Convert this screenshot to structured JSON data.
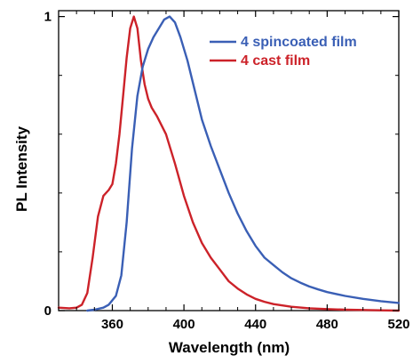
{
  "chart_data": {
    "type": "line",
    "xlabel": "Wavelength (nm)",
    "ylabel": "PL Intensity",
    "xlim": [
      330,
      520
    ],
    "ylim": [
      0,
      1.02
    ],
    "x_ticks": [
      "360",
      "400",
      "440",
      "480",
      "520"
    ],
    "y_ticks": [
      "0",
      "1"
    ],
    "grid": false,
    "legend_position": "top-right",
    "series": [
      {
        "name": "4 spincoated film",
        "color": "#3a5fb5",
        "x": [
          346,
          350,
          355,
          358,
          362,
          365,
          368,
          371,
          374,
          377,
          380,
          383,
          386,
          389,
          392,
          395,
          398,
          402,
          406,
          410,
          415,
          420,
          425,
          430,
          435,
          440,
          445,
          450,
          455,
          460,
          465,
          470,
          475,
          480,
          490,
          500,
          510,
          520
        ],
        "y": [
          0.0,
          0.003,
          0.01,
          0.02,
          0.05,
          0.12,
          0.3,
          0.55,
          0.73,
          0.83,
          0.89,
          0.93,
          0.96,
          0.99,
          1.0,
          0.98,
          0.93,
          0.85,
          0.75,
          0.65,
          0.56,
          0.48,
          0.4,
          0.33,
          0.27,
          0.22,
          0.18,
          0.155,
          0.13,
          0.11,
          0.095,
          0.082,
          0.072,
          0.063,
          0.05,
          0.04,
          0.032,
          0.026
        ]
      },
      {
        "name": "4 cast film",
        "color": "#cc2229",
        "x": [
          330,
          336,
          340,
          343,
          346,
          349,
          352,
          355,
          358,
          360,
          362,
          364,
          366,
          368,
          370,
          372,
          374,
          376,
          378,
          380,
          382,
          385,
          390,
          395,
          400,
          405,
          410,
          415,
          420,
          425,
          430,
          435,
          440,
          445,
          450,
          460,
          470,
          480,
          490,
          500,
          510,
          520
        ],
        "y": [
          0.01,
          0.008,
          0.01,
          0.02,
          0.06,
          0.18,
          0.32,
          0.39,
          0.41,
          0.43,
          0.5,
          0.6,
          0.73,
          0.86,
          0.96,
          1.0,
          0.96,
          0.85,
          0.77,
          0.72,
          0.69,
          0.66,
          0.6,
          0.5,
          0.39,
          0.3,
          0.23,
          0.18,
          0.14,
          0.1,
          0.075,
          0.055,
          0.04,
          0.03,
          0.022,
          0.013,
          0.008,
          0.005,
          0.003,
          0.002,
          0.001,
          0.0
        ]
      }
    ]
  }
}
